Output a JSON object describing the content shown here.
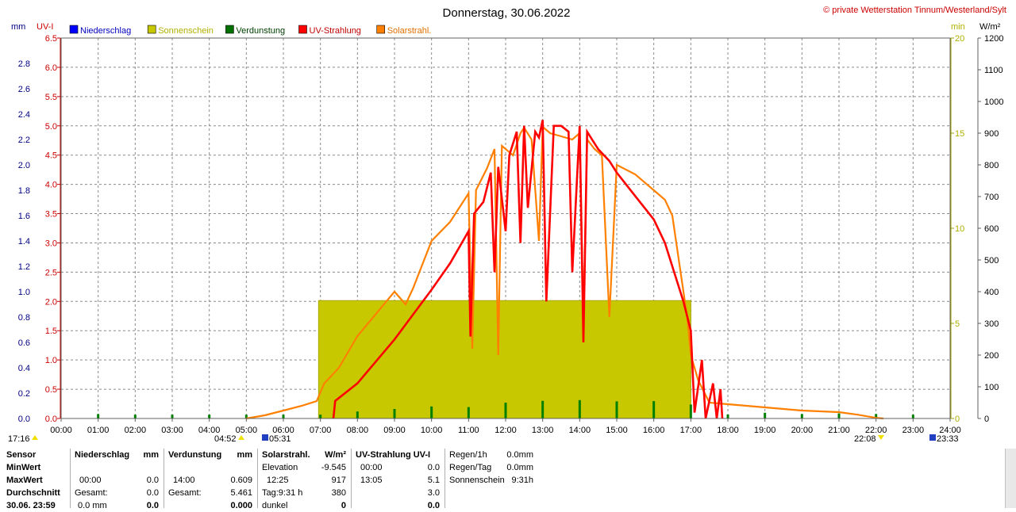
{
  "header": {
    "title": "Donnerstag, 30.06.2022",
    "copyright": "© private Wetterstation Tinnum/Westerland/Sylt"
  },
  "axes": {
    "left_unit_mm": "mm",
    "left_unit_uv": "UV-I",
    "right_unit_min": "min",
    "right_unit_wm2": "W/m²",
    "mm_ticks": [
      "0.0",
      "0.2",
      "0.4",
      "0.6",
      "0.8",
      "1.0",
      "1.2",
      "1.4",
      "1.6",
      "1.8",
      "2.0",
      "2.2",
      "2.4",
      "2.6",
      "2.8"
    ],
    "uv_ticks": [
      "0.0",
      "0.5",
      "1.0",
      "1.5",
      "2.0",
      "2.5",
      "3.0",
      "3.5",
      "4.0",
      "4.5",
      "5.0",
      "5.5",
      "6.0",
      "6.5"
    ],
    "min_ticks": [
      "0",
      "5",
      "10",
      "15",
      "20"
    ],
    "wm2_ticks": [
      "0",
      "100",
      "200",
      "300",
      "400",
      "500",
      "600",
      "700",
      "800",
      "900",
      "1000",
      "1100",
      "1200"
    ],
    "x_ticks": [
      "00:00",
      "01:00",
      "02:00",
      "03:00",
      "04:00",
      "05:00",
      "06:00",
      "07:00",
      "08:00",
      "09:00",
      "10:00",
      "11:00",
      "12:00",
      "13:00",
      "14:00",
      "15:00",
      "16:00",
      "17:00",
      "18:00",
      "19:00",
      "20:00",
      "21:00",
      "22:00",
      "23:00",
      "24:00"
    ]
  },
  "legend": [
    {
      "label": "Niederschlag",
      "color": "#0000ff",
      "text_color": "#0000c0"
    },
    {
      "label": "Sonnenschein",
      "color": "#c8c800",
      "text_color": "#b0b000"
    },
    {
      "label": "Verdunstung",
      "color": "#007000",
      "text_color": "#004000"
    },
    {
      "label": "UV-Strahlung",
      "color": "#ff0000",
      "text_color": "#c00000"
    },
    {
      "label": "Solarstrahl.",
      "color": "#ff8000",
      "text_color": "#e07000"
    }
  ],
  "sun_markers": {
    "moon_rise": "17:16",
    "dawn": "04:52",
    "sunrise": "05:31",
    "sunset": "22:08",
    "dusk": "23:33"
  },
  "chart_data": {
    "type": "line",
    "title": "Donnerstag, 30.06.2022",
    "x_unit": "hours",
    "xlim": [
      0,
      24
    ],
    "ylim_mm": [
      0,
      3.0
    ],
    "ylim_uv": [
      0,
      6.5
    ],
    "ylim_min": [
      0,
      20
    ],
    "ylim_wm2": [
      0,
      1200
    ],
    "series": [
      {
        "name": "Solarstrahl.",
        "axis": "W/m²",
        "points": [
          [
            5.0,
            0
          ],
          [
            5.5,
            10
          ],
          [
            6.0,
            25
          ],
          [
            6.5,
            40
          ],
          [
            6.9,
            55
          ],
          [
            7.1,
            110
          ],
          [
            7.5,
            160
          ],
          [
            8.0,
            260
          ],
          [
            8.5,
            330
          ],
          [
            9.0,
            400
          ],
          [
            9.3,
            360
          ],
          [
            9.5,
            410
          ],
          [
            10.0,
            560
          ],
          [
            10.5,
            620
          ],
          [
            11.0,
            710
          ],
          [
            11.1,
            220
          ],
          [
            11.2,
            720
          ],
          [
            11.5,
            790
          ],
          [
            11.7,
            850
          ],
          [
            11.8,
            200
          ],
          [
            11.9,
            860
          ],
          [
            12.2,
            830
          ],
          [
            12.4,
            900
          ],
          [
            12.5,
            917
          ],
          [
            12.7,
            880
          ],
          [
            12.9,
            560
          ],
          [
            13.0,
            920
          ],
          [
            13.2,
            900
          ],
          [
            13.5,
            890
          ],
          [
            13.8,
            880
          ],
          [
            14.0,
            900
          ],
          [
            14.1,
            300
          ],
          [
            14.2,
            880
          ],
          [
            14.4,
            850
          ],
          [
            14.6,
            830
          ],
          [
            14.8,
            320
          ],
          [
            15.0,
            800
          ],
          [
            15.5,
            770
          ],
          [
            16.0,
            720
          ],
          [
            16.3,
            690
          ],
          [
            16.5,
            640
          ],
          [
            16.9,
            320
          ],
          [
            17.0,
            200
          ],
          [
            17.2,
            120
          ],
          [
            17.5,
            50
          ],
          [
            18.0,
            45
          ],
          [
            19.0,
            35
          ],
          [
            20.0,
            25
          ],
          [
            21.0,
            20
          ],
          [
            21.5,
            12
          ],
          [
            22.0,
            2
          ],
          [
            22.2,
            0
          ]
        ]
      },
      {
        "name": "UV-Strahlung",
        "axis": "UV-I",
        "points": [
          [
            7.35,
            0
          ],
          [
            7.4,
            0.3
          ],
          [
            8.0,
            0.6
          ],
          [
            9.0,
            1.35
          ],
          [
            10.0,
            2.2
          ],
          [
            10.5,
            2.65
          ],
          [
            11.0,
            3.2
          ],
          [
            11.05,
            1.4
          ],
          [
            11.15,
            3.5
          ],
          [
            11.4,
            3.7
          ],
          [
            11.6,
            4.2
          ],
          [
            11.7,
            2.5
          ],
          [
            11.8,
            4.3
          ],
          [
            12.0,
            3.2
          ],
          [
            12.1,
            4.5
          ],
          [
            12.3,
            4.9
          ],
          [
            12.4,
            3.0
          ],
          [
            12.5,
            5.0
          ],
          [
            12.6,
            3.6
          ],
          [
            12.8,
            4.9
          ],
          [
            12.9,
            4.8
          ],
          [
            13.0,
            5.1
          ],
          [
            13.1,
            2.0
          ],
          [
            13.3,
            5.0
          ],
          [
            13.5,
            5.0
          ],
          [
            13.7,
            4.9
          ],
          [
            13.8,
            2.5
          ],
          [
            14.0,
            5.0
          ],
          [
            14.1,
            1.3
          ],
          [
            14.2,
            4.9
          ],
          [
            14.5,
            4.6
          ],
          [
            14.8,
            4.4
          ],
          [
            15.0,
            4.2
          ],
          [
            15.5,
            3.8
          ],
          [
            16.0,
            3.4
          ],
          [
            16.3,
            3.0
          ],
          [
            16.5,
            2.6
          ],
          [
            16.8,
            2.0
          ],
          [
            17.0,
            1.5
          ],
          [
            17.1,
            0.1
          ],
          [
            17.3,
            1.0
          ],
          [
            17.4,
            0
          ],
          [
            17.6,
            0.6
          ],
          [
            17.7,
            0
          ],
          [
            17.8,
            0.5
          ],
          [
            17.85,
            0
          ]
        ]
      },
      {
        "name": "Verdunstung",
        "axis": "mm",
        "type": "bar",
        "points": [
          [
            1.0,
            0.01
          ],
          [
            2.0,
            0.005
          ],
          [
            3.0,
            0.005
          ],
          [
            4.0,
            0.005
          ],
          [
            5.0,
            0.005
          ],
          [
            6.0,
            0.005
          ],
          [
            7.0,
            0.005
          ],
          [
            8.0,
            0.03
          ],
          [
            9.0,
            0.05
          ],
          [
            10.0,
            0.07
          ],
          [
            11.0,
            0.065
          ],
          [
            12.0,
            0.1
          ],
          [
            13.0,
            0.114
          ],
          [
            14.0,
            0.12
          ],
          [
            15.0,
            0.11
          ],
          [
            16.0,
            0.112
          ],
          [
            17.0,
            0.085
          ],
          [
            18.0,
            0.006
          ],
          [
            19.0,
            0.02
          ],
          [
            20.0,
            0.01
          ],
          [
            21.0,
            0.015
          ],
          [
            22.0,
            0.01
          ],
          [
            23.0,
            0.005
          ]
        ]
      },
      {
        "name": "Sonnenschein",
        "axis": "min",
        "type": "area",
        "points": [
          [
            6.95,
            6.2
          ],
          [
            14.05,
            6.2
          ],
          [
            14.1,
            6.0
          ],
          [
            14.15,
            6.2
          ],
          [
            17.0,
            6.2
          ]
        ]
      },
      {
        "name": "Niederschlag",
        "axis": "mm",
        "points": []
      }
    ]
  },
  "table": {
    "row_labels": [
      "Sensor",
      "MinWert",
      "MaxWert",
      "Durchschnitt",
      "30.06. 23:59"
    ],
    "niederschlag": {
      "header": "Niederschlag",
      "unit": "mm",
      "max_time": "00:00",
      "max_val": "0.0",
      "gesamt_label": "Gesamt:",
      "gesamt_val": "0.0",
      "last_left": "0.0 mm",
      "last_val": "0.0"
    },
    "verdunstung": {
      "header": "Verdunstung",
      "unit": "mm",
      "max_time": "14:00",
      "max_val": "0.609",
      "gesamt_label": "Gesamt:",
      "gesamt_val": "5.461",
      "last_val": "0.000"
    },
    "solar": {
      "header": "Solarstrahl.",
      "unit": "W/m²",
      "elev_label": "Elevation",
      "elev_val": "-9.545",
      "max_time": "12:25",
      "max_val": "917",
      "avg_label": "Tag:9:31 h",
      "avg_val": "380",
      "last_label": "dunkel",
      "last_val": "0"
    },
    "uv": {
      "header": "UV-Strahlung UV-I",
      "min_time": "00:00",
      "min_val": "0.0",
      "max_time": "13:05",
      "max_val": "5.1",
      "avg_val": "3.0",
      "last_val": "0.0"
    },
    "regen": {
      "h1_label": "Regen/1h",
      "h1_val": "0.0mm",
      "tag_label": "Regen/Tag",
      "tag_val": "0.0mm",
      "sun_label": "Sonnenschein",
      "sun_val": "9:31h"
    }
  }
}
